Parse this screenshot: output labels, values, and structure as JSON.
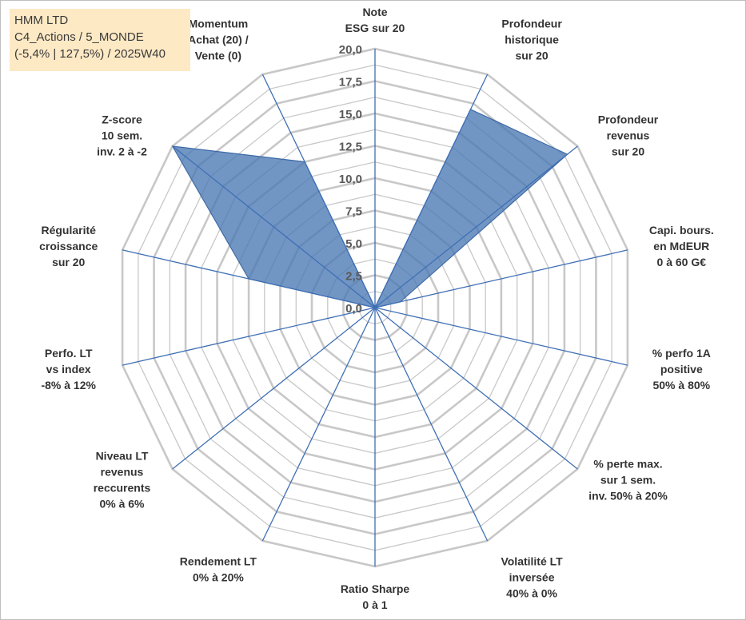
{
  "header": {
    "company": "HMM LTD",
    "category": "C4_Actions / 5_MONDE",
    "stats": "(-5,4% | 127,5%) / 2025W40"
  },
  "chart_data": {
    "type": "radar",
    "rmin": 0,
    "rmax": 20,
    "tick_step": 2.5,
    "grid_rings": 16,
    "tick_labels": [
      "0,0",
      "2,5",
      "5,0",
      "7,5",
      "10,0",
      "12,5",
      "15,0",
      "17,5",
      "20,0"
    ],
    "axes": [
      {
        "label": [
          "Note",
          "ESG sur 20"
        ],
        "value": 0
      },
      {
        "label": [
          "Profondeur",
          "historique",
          "sur 20"
        ],
        "value": 17
      },
      {
        "label": [
          "Profondeur",
          "revenus",
          "sur 20"
        ],
        "value": 19
      },
      {
        "label": [
          "Capi. bours.",
          "en MdEUR",
          "0 à 60 G€"
        ],
        "value": 2
      },
      {
        "label": [
          "% perfo 1A",
          "positive",
          "50% à 80%"
        ],
        "value": 0
      },
      {
        "label": [
          "% perte max.",
          "sur 1 sem.",
          "inv. 50% à 20%"
        ],
        "value": 0
      },
      {
        "label": [
          "Volatilité LT",
          "inversée",
          "40% à 0%"
        ],
        "value": 0
      },
      {
        "label": [
          "Ratio Sharpe",
          "0 à 1"
        ],
        "value": 0
      },
      {
        "label": [
          "Rendement LT",
          "0% à 20%"
        ],
        "value": 0
      },
      {
        "label": [
          "Niveau LT",
          "revenus",
          "reccurents",
          "0% à 6%"
        ],
        "value": 0
      },
      {
        "label": [
          "Perfo. LT",
          "vs index",
          "-8% à 12%"
        ],
        "value": 0
      },
      {
        "label": [
          "Régularité",
          "croissance",
          "sur 20"
        ],
        "value": 10
      },
      {
        "label": [
          "Z-score",
          "10 sem.",
          "inv. 2 à -2"
        ],
        "value": 20
      },
      {
        "label": [
          "Momentum",
          "Achat (20) /",
          "Vente (0)"
        ],
        "value": 12.5
      }
    ],
    "series_color": "#4a78b3",
    "grid_color": "#c8c8c8",
    "spoke_color": "#3f6fb5"
  }
}
